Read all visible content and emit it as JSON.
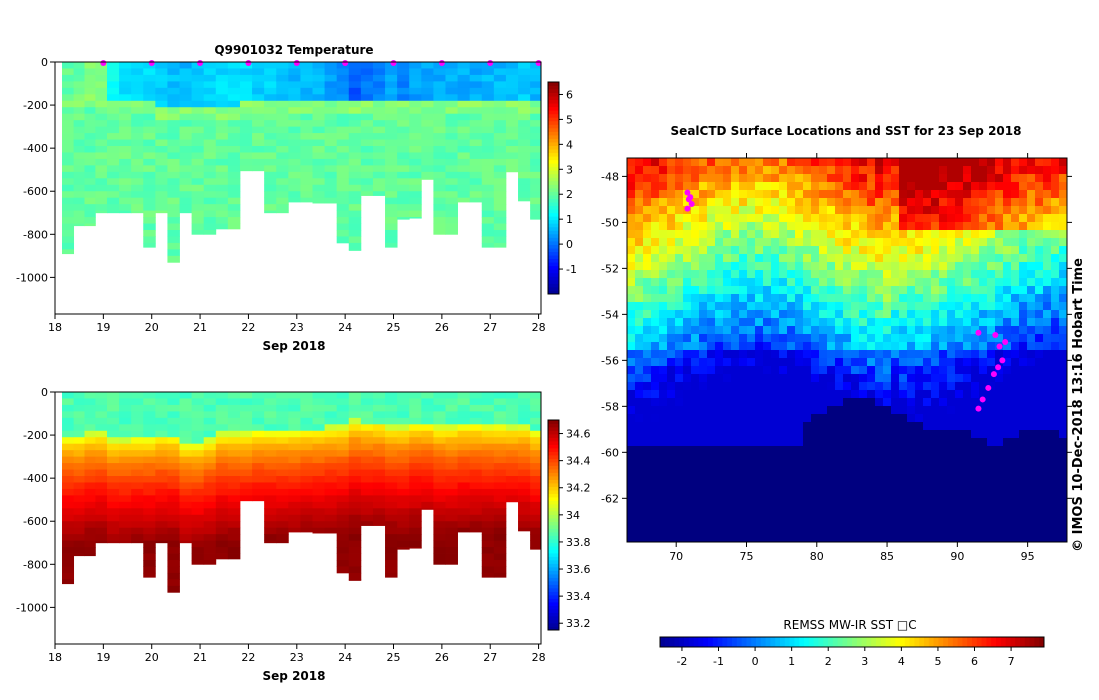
{
  "chart_data": [
    {
      "type": "heatmap",
      "title": "Q9901032  Temperature",
      "xlabel": "Sep 2018",
      "x_ticks": [
        "18",
        "19",
        "20",
        "21",
        "22",
        "23",
        "24",
        "25",
        "26",
        "27",
        "28"
      ],
      "x_range": [
        18,
        28.05
      ],
      "y_ticks": [
        "0",
        "-200",
        "-400",
        "-600",
        "-800",
        "-1000"
      ],
      "y_range": [
        -1170,
        0
      ],
      "colorbar_ticks": [
        "-1",
        "0",
        "1",
        "2",
        "3",
        "4",
        "5",
        "6"
      ],
      "colorbar_range": [
        -2,
        6.5
      ],
      "profile_days": [
        18.27,
        18.5,
        18.72,
        18.95,
        19.2,
        19.45,
        19.7,
        19.95,
        20.2,
        20.45,
        20.7,
        20.95,
        21.2,
        21.45,
        21.7,
        21.95,
        22.2,
        22.45,
        22.7,
        22.95,
        23.2,
        23.45,
        23.7,
        23.95,
        24.2,
        24.45,
        24.7,
        24.95,
        25.2,
        25.45,
        25.7,
        25.95,
        26.2,
        26.45,
        26.7,
        26.95,
        27.2,
        27.45,
        27.7,
        27.95
      ],
      "profile_max_depth": [
        -890,
        -760,
        -760,
        -700,
        -700,
        -700,
        -700,
        -860,
        -700,
        -930,
        -700,
        -800,
        -800,
        -775,
        -775,
        -505,
        -505,
        -700,
        -700,
        -650,
        -650,
        -655,
        -655,
        -840,
        -875,
        -620,
        -620,
        -860,
        -730,
        -725,
        -545,
        -800,
        -800,
        -650,
        -650,
        -860,
        -860,
        -510,
        -645,
        -730
      ],
      "surface_temp": [
        2.0,
        2.0,
        2.3,
        2.2,
        1.2,
        1.0,
        0.9,
        0.9,
        0.8,
        0.7,
        0.6,
        0.7,
        0.9,
        0.9,
        0.9,
        0.9,
        0.8,
        0.8,
        0.7,
        0.6,
        0.6,
        0.6,
        0.4,
        0.3,
        -0.2,
        0.0,
        0.1,
        0.5,
        0.2,
        0.4,
        0.5,
        0.5,
        0.5,
        0.5,
        0.5,
        0.6,
        0.6,
        0.7,
        0.8,
        0.6
      ],
      "deep_temp": 2.0,
      "surface_layer_depth": [
        -150,
        -150,
        -150,
        -150,
        -170,
        -170,
        -180,
        -180,
        -190,
        -190,
        -200,
        -200,
        -200,
        -190,
        -190,
        -180,
        -180,
        -175,
        -175,
        -175,
        -175,
        -170,
        -170,
        -160,
        -160,
        -170,
        -170,
        -180,
        -180,
        -180,
        -180,
        -170,
        -170,
        -170,
        -170,
        -160,
        -160,
        -160,
        -160,
        -160
      ],
      "surface_marker_days": [
        19,
        20,
        21,
        22,
        23,
        24,
        25,
        26,
        27,
        28
      ]
    },
    {
      "type": "heatmap",
      "title": "",
      "xlabel": "Sep 2018",
      "x_ticks": [
        "18",
        "19",
        "20",
        "21",
        "22",
        "23",
        "24",
        "25",
        "26",
        "27",
        "28"
      ],
      "x_range": [
        18,
        28.05
      ],
      "y_ticks": [
        "0",
        "-200",
        "-400",
        "-600",
        "-800",
        "-1000"
      ],
      "y_range": [
        -1170,
        0
      ],
      "colorbar_ticks": [
        "33.2",
        "33.4",
        "33.6",
        "33.8",
        "34",
        "34.2",
        "34.4",
        "34.6"
      ],
      "colorbar_range": [
        33.15,
        34.7
      ],
      "profile_days": [
        18.27,
        18.5,
        18.72,
        18.95,
        19.2,
        19.45,
        19.7,
        19.95,
        20.2,
        20.45,
        20.7,
        20.95,
        21.2,
        21.45,
        21.7,
        21.95,
        22.2,
        22.45,
        22.7,
        22.95,
        23.2,
        23.45,
        23.7,
        23.95,
        24.2,
        24.45,
        24.7,
        24.95,
        25.2,
        25.45,
        25.7,
        25.95,
        26.2,
        26.45,
        26.7,
        26.95,
        27.2,
        27.45,
        27.7,
        27.95
      ],
      "profile_max_depth": [
        -890,
        -760,
        -760,
        -700,
        -700,
        -700,
        -700,
        -860,
        -700,
        -930,
        -700,
        -800,
        -800,
        -775,
        -775,
        -505,
        -505,
        -700,
        -700,
        -650,
        -650,
        -655,
        -655,
        -840,
        -875,
        -620,
        -620,
        -860,
        -730,
        -725,
        -545,
        -800,
        -800,
        -650,
        -650,
        -860,
        -860,
        -510,
        -645,
        -730
      ],
      "halocline_depth": [
        -220,
        -220,
        -200,
        -200,
        -230,
        -230,
        -220,
        -220,
        -210,
        -210,
        -250,
        -250,
        -230,
        -200,
        -200,
        -200,
        -190,
        -190,
        -190,
        -190,
        -180,
        -180,
        -170,
        -170,
        -140,
        -150,
        -150,
        -170,
        -170,
        -150,
        -150,
        -170,
        -170,
        -160,
        -160,
        -165,
        -165,
        -170,
        -170,
        -190
      ],
      "surface_salinity": 33.85,
      "deep_salinity": 34.68
    },
    {
      "type": "heatmap",
      "title": "SealCTD Surface Locations and SST for 23 Sep 2018",
      "xlabel": "",
      "ylabel": "",
      "x_ticks": [
        "70",
        "75",
        "80",
        "85",
        "90",
        "95"
      ],
      "x_range": [
        66.5,
        97.8
      ],
      "y_ticks": [
        "-48",
        "-50",
        "-52",
        "-54",
        "-56",
        "-58",
        "-60",
        "-62"
      ],
      "y_range": [
        -63.9,
        -47.2
      ],
      "colorbar_label": "REMSS MW-IR SST □C",
      "colorbar_ticks": [
        "-2",
        "-1",
        "0",
        "1",
        "2",
        "3",
        "4",
        "5",
        "6",
        "7"
      ],
      "colorbar_range": [
        -2.6,
        7.9
      ],
      "seal_track_points": [
        [
          70.9,
          -49.0
        ],
        [
          70.8,
          -48.7
        ],
        [
          71.0,
          -48.9
        ],
        [
          71.1,
          -49.2
        ],
        [
          70.8,
          -49.4
        ],
        [
          91.5,
          -58.1
        ],
        [
          91.8,
          -57.7
        ],
        [
          92.2,
          -57.2
        ],
        [
          92.6,
          -56.6
        ],
        [
          92.9,
          -56.3
        ],
        [
          93.2,
          -56.0
        ],
        [
          93.0,
          -55.4
        ],
        [
          92.7,
          -54.9
        ],
        [
          93.4,
          -55.2
        ],
        [
          91.5,
          -54.8
        ]
      ],
      "credit": "©  IMOS 10-Dec-2018 13:16 Hobart Time"
    }
  ],
  "colors": {
    "profile_point": "#ff00ff",
    "land": "#000080"
  }
}
